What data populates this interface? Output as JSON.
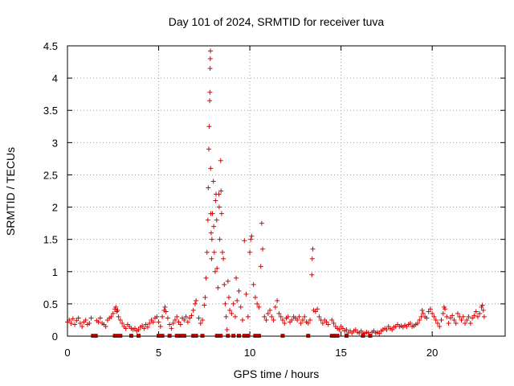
{
  "chart_data": {
    "type": "scatter",
    "title": "Day 101 of 2024, SRMTID for receiver tuva",
    "xlabel": "GPS time / hours",
    "ylabel": "SRMTID / TECUs",
    "xlim": [
      0,
      24
    ],
    "ylim": [
      0,
      4.5
    ],
    "xticks": [
      0,
      5,
      10,
      15,
      20
    ],
    "xtick_labels": [
      "0",
      "5",
      "10",
      "15",
      "20"
    ],
    "yticks": [
      0,
      0.5,
      1,
      1.5,
      2,
      2.5,
      3,
      3.5,
      4,
      4.5
    ],
    "ytick_labels": [
      "0",
      "0.5",
      "1",
      "1.5",
      "2",
      "2.5",
      "3",
      "3.5",
      "4",
      "4.5"
    ],
    "grid": true,
    "marker": "plus",
    "color": "#e00000",
    "series": [
      {
        "name": "SRMTID",
        "points": [
          [
            0.0,
            0.22
          ],
          [
            0.1,
            0.25
          ],
          [
            0.2,
            0.2
          ],
          [
            0.3,
            0.27
          ],
          [
            0.4,
            0.18
          ],
          [
            0.5,
            0.24
          ],
          [
            0.6,
            0.28
          ],
          [
            0.7,
            0.2
          ],
          [
            0.8,
            0.15
          ],
          [
            0.9,
            0.22
          ],
          [
            1.0,
            0.25
          ],
          [
            1.1,
            0.18
          ],
          [
            1.2,
            0.2
          ],
          [
            1.3,
            0.28
          ],
          [
            1.6,
            0.24
          ],
          [
            1.7,
            0.22
          ],
          [
            1.8,
            0.28
          ],
          [
            1.9,
            0.2
          ],
          [
            2.0,
            0.18
          ],
          [
            2.1,
            0.15
          ],
          [
            2.2,
            0.25
          ],
          [
            2.3,
            0.28
          ],
          [
            2.4,
            0.3
          ],
          [
            2.5,
            0.35
          ],
          [
            2.6,
            0.42
          ],
          [
            2.65,
            0.45
          ],
          [
            2.7,
            0.38
          ],
          [
            2.75,
            0.4
          ],
          [
            2.8,
            0.3
          ],
          [
            2.9,
            0.25
          ],
          [
            3.0,
            0.2
          ],
          [
            3.1,
            0.15
          ],
          [
            3.2,
            0.12
          ],
          [
            3.3,
            0.18
          ],
          [
            3.4,
            0.15
          ],
          [
            3.5,
            0.12
          ],
          [
            3.6,
            0.1
          ],
          [
            3.7,
            0.12
          ],
          [
            3.8,
            0.08
          ],
          [
            3.9,
            0.1
          ],
          [
            4.0,
            0.14
          ],
          [
            4.1,
            0.16
          ],
          [
            4.2,
            0.12
          ],
          [
            4.3,
            0.18
          ],
          [
            4.4,
            0.14
          ],
          [
            4.5,
            0.2
          ],
          [
            4.6,
            0.25
          ],
          [
            4.7,
            0.22
          ],
          [
            4.8,
            0.28
          ],
          [
            4.9,
            0.3
          ],
          [
            5.0,
            0.22
          ],
          [
            5.1,
            0.15
          ],
          [
            5.2,
            0.3
          ],
          [
            5.3,
            0.4
          ],
          [
            5.35,
            0.45
          ],
          [
            5.4,
            0.38
          ],
          [
            5.5,
            0.28
          ],
          [
            5.6,
            0.18
          ],
          [
            5.7,
            0.12
          ],
          [
            5.8,
            0.2
          ],
          [
            5.9,
            0.25
          ],
          [
            6.0,
            0.3
          ],
          [
            6.1,
            0.22
          ],
          [
            6.2,
            0.18
          ],
          [
            6.3,
            0.28
          ],
          [
            6.4,
            0.25
          ],
          [
            6.5,
            0.3
          ],
          [
            6.6,
            0.22
          ],
          [
            6.7,
            0.28
          ],
          [
            6.8,
            0.32
          ],
          [
            6.9,
            0.4
          ],
          [
            7.0,
            0.5
          ],
          [
            7.05,
            0.55
          ],
          [
            7.2,
            0.28
          ],
          [
            7.3,
            0.2
          ],
          [
            7.4,
            0.25
          ],
          [
            7.5,
            0.48
          ],
          [
            7.55,
            0.6
          ],
          [
            7.6,
            0.9
          ],
          [
            7.65,
            1.3
          ],
          [
            7.7,
            1.8
          ],
          [
            7.72,
            2.3
          ],
          [
            7.75,
            2.9
          ],
          [
            7.77,
            3.25
          ],
          [
            7.8,
            3.65
          ],
          [
            7.81,
            3.78
          ],
          [
            7.82,
            4.15
          ],
          [
            7.83,
            4.3
          ],
          [
            7.84,
            4.42
          ],
          [
            7.85,
            2.6
          ],
          [
            7.86,
            1.9
          ],
          [
            7.88,
            1.6
          ],
          [
            7.9,
            1.2
          ],
          [
            7.92,
            1.5
          ],
          [
            7.95,
            1.9
          ],
          [
            8.0,
            2.4
          ],
          [
            8.02,
            1.7
          ],
          [
            8.05,
            1.3
          ],
          [
            8.1,
            1.0
          ],
          [
            8.12,
            2.1
          ],
          [
            8.15,
            2.2
          ],
          [
            8.18,
            1.8
          ],
          [
            8.2,
            1.05
          ],
          [
            8.25,
            0.75
          ],
          [
            8.3,
            2.2
          ],
          [
            8.32,
            2.0
          ],
          [
            8.35,
            1.5
          ],
          [
            8.4,
            2.72
          ],
          [
            8.42,
            2.25
          ],
          [
            8.45,
            1.9
          ],
          [
            8.5,
            1.3
          ],
          [
            8.55,
            1.2
          ],
          [
            8.6,
            0.8
          ],
          [
            8.65,
            0.5
          ],
          [
            8.7,
            0.3
          ],
          [
            8.75,
            0.1
          ],
          [
            8.8,
            0.85
          ],
          [
            8.85,
            0.6
          ],
          [
            8.9,
            0.4
          ],
          [
            9.0,
            0.35
          ],
          [
            9.1,
            0.5
          ],
          [
            9.2,
            0.3
          ],
          [
            9.25,
            0.9
          ],
          [
            9.3,
            0.55
          ],
          [
            9.4,
            0.7
          ],
          [
            9.5,
            0.45
          ],
          [
            9.6,
            0.25
          ],
          [
            9.7,
            1.48
          ],
          [
            9.8,
            0.65
          ],
          [
            9.9,
            0.3
          ],
          [
            10.0,
            1.3
          ],
          [
            10.05,
            1.5
          ],
          [
            10.1,
            1.55
          ],
          [
            10.2,
            0.8
          ],
          [
            10.3,
            0.6
          ],
          [
            10.4,
            0.5
          ],
          [
            10.5,
            0.45
          ],
          [
            10.6,
            1.08
          ],
          [
            10.65,
            1.75
          ],
          [
            10.7,
            1.35
          ],
          [
            10.8,
            0.3
          ],
          [
            10.9,
            0.25
          ],
          [
            11.0,
            0.35
          ],
          [
            11.1,
            0.4
          ],
          [
            11.2,
            0.3
          ],
          [
            11.3,
            0.25
          ],
          [
            11.4,
            0.45
          ],
          [
            11.5,
            0.55
          ],
          [
            11.6,
            0.35
          ],
          [
            11.7,
            0.3
          ],
          [
            11.8,
            0.25
          ],
          [
            11.9,
            0.2
          ],
          [
            12.0,
            0.28
          ],
          [
            12.1,
            0.3
          ],
          [
            12.2,
            0.22
          ],
          [
            12.3,
            0.25
          ],
          [
            12.4,
            0.3
          ],
          [
            12.5,
            0.28
          ],
          [
            12.6,
            0.25
          ],
          [
            12.7,
            0.3
          ],
          [
            12.8,
            0.2
          ],
          [
            12.9,
            0.25
          ],
          [
            13.0,
            0.3
          ],
          [
            13.1,
            0.22
          ],
          [
            13.2,
            0.2
          ],
          [
            13.3,
            0.25
          ],
          [
            13.4,
            0.95
          ],
          [
            13.42,
            1.2
          ],
          [
            13.45,
            1.35
          ],
          [
            13.5,
            0.4
          ],
          [
            13.6,
            0.38
          ],
          [
            13.7,
            0.42
          ],
          [
            13.8,
            0.3
          ],
          [
            13.9,
            0.25
          ],
          [
            14.0,
            0.2
          ],
          [
            14.1,
            0.25
          ],
          [
            14.2,
            0.22
          ],
          [
            14.3,
            0.18
          ],
          [
            14.5,
            0.25
          ],
          [
            14.6,
            0.2
          ],
          [
            14.7,
            0.15
          ],
          [
            14.8,
            0.12
          ],
          [
            14.9,
            0.1
          ],
          [
            15.0,
            0.15
          ],
          [
            15.1,
            0.12
          ],
          [
            15.2,
            0.08
          ],
          [
            15.3,
            0.1
          ],
          [
            15.4,
            0.05
          ],
          [
            15.5,
            0.08
          ],
          [
            15.6,
            0.05
          ],
          [
            15.7,
            0.08
          ],
          [
            15.8,
            0.1
          ],
          [
            15.9,
            0.06
          ],
          [
            16.0,
            0.05
          ],
          [
            16.1,
            0.08
          ],
          [
            16.2,
            0.05
          ],
          [
            16.3,
            0.04
          ],
          [
            16.4,
            0.06
          ],
          [
            16.5,
            0.05
          ],
          [
            16.7,
            0.06
          ],
          [
            16.8,
            0.08
          ],
          [
            16.9,
            0.05
          ],
          [
            17.0,
            0.06
          ],
          [
            17.1,
            0.04
          ],
          [
            17.2,
            0.08
          ],
          [
            17.3,
            0.1
          ],
          [
            17.4,
            0.12
          ],
          [
            17.5,
            0.1
          ],
          [
            17.6,
            0.15
          ],
          [
            17.7,
            0.12
          ],
          [
            17.8,
            0.1
          ],
          [
            17.9,
            0.14
          ],
          [
            18.0,
            0.15
          ],
          [
            18.1,
            0.18
          ],
          [
            18.2,
            0.15
          ],
          [
            18.3,
            0.16
          ],
          [
            18.4,
            0.14
          ],
          [
            18.5,
            0.17
          ],
          [
            18.6,
            0.15
          ],
          [
            18.7,
            0.18
          ],
          [
            18.8,
            0.2
          ],
          [
            18.9,
            0.15
          ],
          [
            19.0,
            0.16
          ],
          [
            19.1,
            0.18
          ],
          [
            19.2,
            0.2
          ],
          [
            19.3,
            0.25
          ],
          [
            19.4,
            0.3
          ],
          [
            19.45,
            0.4
          ],
          [
            19.5,
            0.35
          ],
          [
            19.6,
            0.3
          ],
          [
            19.7,
            0.28
          ],
          [
            19.8,
            0.38
          ],
          [
            19.9,
            0.42
          ],
          [
            20.0,
            0.35
          ],
          [
            20.1,
            0.3
          ],
          [
            20.2,
            0.25
          ],
          [
            20.3,
            0.2
          ],
          [
            20.4,
            0.15
          ],
          [
            20.5,
            0.25
          ],
          [
            20.6,
            0.35
          ],
          [
            20.65,
            0.45
          ],
          [
            20.7,
            0.42
          ],
          [
            20.8,
            0.3
          ],
          [
            20.9,
            0.2
          ],
          [
            21.0,
            0.28
          ],
          [
            21.1,
            0.32
          ],
          [
            21.2,
            0.25
          ],
          [
            21.3,
            0.2
          ],
          [
            21.4,
            0.35
          ],
          [
            21.5,
            0.3
          ],
          [
            21.6,
            0.25
          ],
          [
            21.7,
            0.3
          ],
          [
            21.8,
            0.2
          ],
          [
            21.9,
            0.25
          ],
          [
            22.0,
            0.3
          ],
          [
            22.1,
            0.2
          ],
          [
            22.2,
            0.28
          ],
          [
            22.3,
            0.32
          ],
          [
            22.4,
            0.38
          ],
          [
            22.5,
            0.3
          ],
          [
            22.6,
            0.35
          ],
          [
            22.7,
            0.45
          ],
          [
            22.75,
            0.48
          ],
          [
            22.8,
            0.4
          ],
          [
            22.85,
            0.3
          ]
        ]
      }
    ],
    "bottom_markers_x": [
      1.4,
      1.5,
      1.55,
      2.6,
      2.7,
      2.9,
      3.5,
      3.9,
      5.0,
      5.2,
      5.6,
      6.0,
      6.2,
      6.4,
      6.9,
      7.05,
      7.4,
      8.2,
      8.4,
      8.8,
      9.1,
      9.4,
      9.7,
      9.9,
      10.3,
      10.5,
      11.8,
      13.2,
      14.5,
      14.7,
      14.8,
      15.3,
      16.2,
      16.6
    ]
  }
}
